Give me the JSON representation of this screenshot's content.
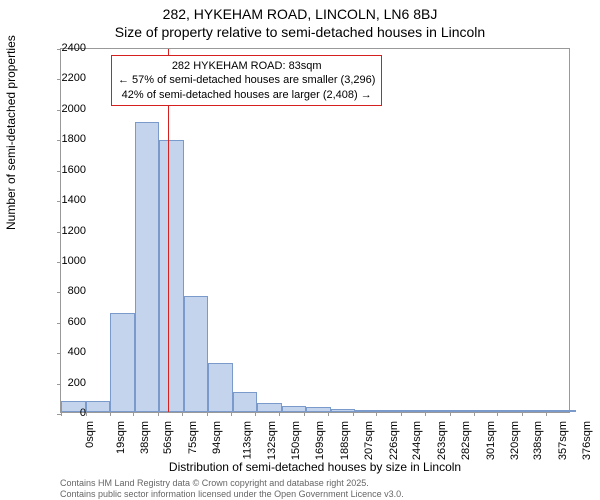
{
  "titles": {
    "line1": "282, HYKEHAM ROAD, LINCOLN, LN6 8BJ",
    "line2": "Size of property relative to semi-detached houses in Lincoln"
  },
  "ylabel": "Number of semi-detached properties",
  "xlabel": "Distribution of semi-detached houses by size in Lincoln",
  "footer": {
    "line1": "Contains HM Land Registry data © Crown copyright and database right 2025.",
    "line2": "Contains public sector information licensed under the Open Government Licence v3.0."
  },
  "chart": {
    "type": "histogram",
    "ymax": 2400,
    "ytick_step": 200,
    "xmax": 395,
    "xticks": [
      0,
      19,
      38,
      56,
      75,
      94,
      113,
      132,
      150,
      169,
      188,
      207,
      226,
      244,
      263,
      282,
      301,
      320,
      338,
      357,
      376
    ],
    "xtick_suffix": "sqm",
    "bin_width": 19,
    "bar_fill": "#c3d4ec",
    "bar_stroke": "#7a9acb",
    "marker_color": "#d62020",
    "values": [
      70,
      70,
      650,
      1910,
      1790,
      760,
      320,
      130,
      60,
      40,
      30,
      20,
      15,
      10,
      8,
      5,
      3,
      2,
      2,
      1,
      1
    ],
    "marker_x": 83
  },
  "annotation": {
    "line1": "282 HYKEHAM ROAD: 83sqm",
    "line2": "← 57% of semi-detached houses are smaller (3,296)",
    "line3": "42% of semi-detached houses are larger (2,408) →"
  }
}
